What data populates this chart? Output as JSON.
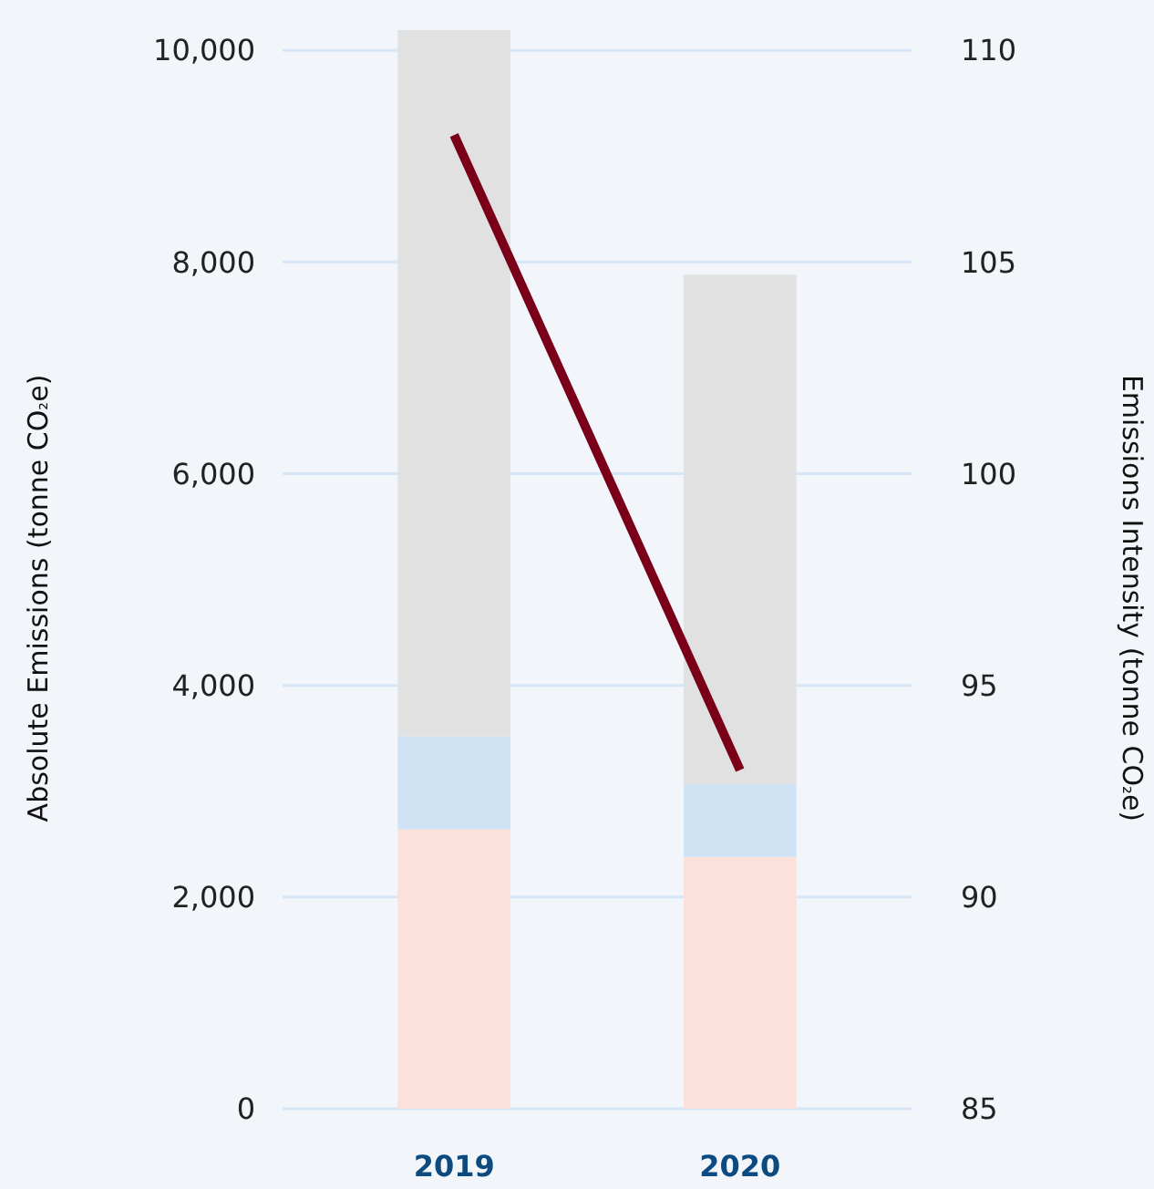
{
  "chart_data": {
    "type": "bar",
    "stacked": true,
    "categories": [
      "2019",
      "2020"
    ],
    "series": [
      {
        "color": "#fbe0dc",
        "values": [
          2640,
          2380
        ]
      },
      {
        "color": "#d0e3f4",
        "values": [
          880,
          690
        ]
      },
      {
        "color": "#e0e1e0",
        "values": [
          6670,
          4810
        ]
      },
      {
        "type": "line",
        "axis": "y2",
        "color": "#7a0019",
        "values": [
          108,
          93
        ]
      }
    ],
    "ylabel": "Absolute Emissions (tonne CO₂e)",
    "y2label": "Emissions Intensity (tonne CO₂e)",
    "ylim": [
      0,
      10200
    ],
    "yticks": [
      {
        "value": 0,
        "label": "0"
      },
      {
        "value": 2000,
        "label": "2,000"
      },
      {
        "value": 4000,
        "label": "4,000"
      },
      {
        "value": 6000,
        "label": "6,000"
      },
      {
        "value": 8000,
        "label": "8,000"
      },
      {
        "value": 10000,
        "label": "10,000"
      }
    ],
    "y2lim": [
      85,
      110.5
    ],
    "y2ticks": [
      85,
      90,
      95,
      100,
      105,
      110
    ],
    "grid": "y"
  }
}
